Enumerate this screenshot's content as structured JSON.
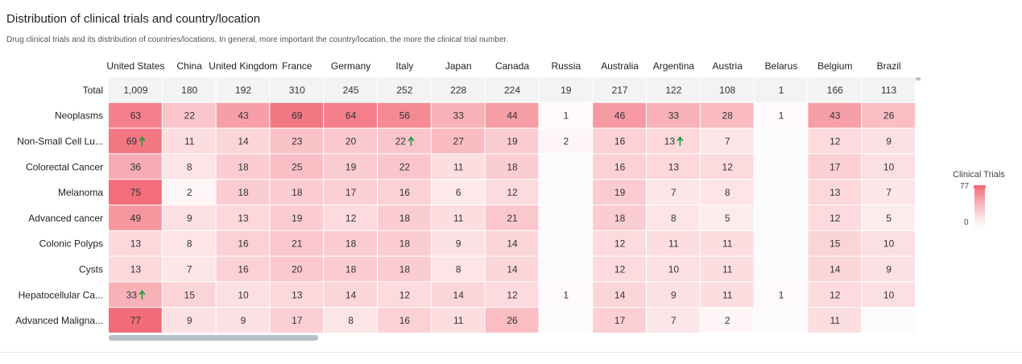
{
  "header": {
    "title": "Distribution of clinical trials and country/location",
    "subtitle": "Drug clinical trials and its distribution of countries/locations. In general, more important the country/location, the more the clinical trial number."
  },
  "legend": {
    "title": "Clinical Trials",
    "max": "77",
    "min": "0"
  },
  "colors": {
    "high": "#f26b78",
    "low": "#ffffff",
    "total_bg": "#f3f3f4",
    "arrow": "#1a9e3a",
    "scrollbar": "#b8bfc7"
  },
  "chart_data": {
    "type": "heatmap",
    "title": "Distribution of clinical trials and country/location",
    "columns": [
      "United States",
      "China",
      "United Kingdom",
      "France",
      "Germany",
      "Italy",
      "Japan",
      "Canada",
      "Russia",
      "Australia",
      "Argentina",
      "Austria",
      "Belarus",
      "Belgium",
      "Brazil"
    ],
    "rows": [
      "Total",
      "Neoplasms",
      "Non-Small Cell Lu...",
      "Colorectal Cancer",
      "Melanoma",
      "Advanced cancer",
      "Colonic Polyps",
      "Cysts",
      "Hepatocellular Ca...",
      "Advanced Maligna..."
    ],
    "total": [
      "1,009",
      "180",
      "192",
      "310",
      "245",
      "252",
      "228",
      "224",
      "19",
      "217",
      "122",
      "108",
      "1",
      "166",
      "113"
    ],
    "values": [
      [
        63,
        22,
        43,
        69,
        64,
        56,
        33,
        44,
        1,
        46,
        33,
        28,
        1,
        43,
        26
      ],
      [
        69,
        11,
        14,
        23,
        20,
        22,
        27,
        19,
        2,
        16,
        13,
        7,
        null,
        12,
        9
      ],
      [
        36,
        8,
        18,
        25,
        19,
        22,
        11,
        18,
        null,
        16,
        13,
        12,
        null,
        17,
        10
      ],
      [
        75,
        2,
        18,
        18,
        17,
        16,
        6,
        12,
        null,
        19,
        7,
        8,
        null,
        13,
        7
      ],
      [
        49,
        9,
        13,
        19,
        12,
        18,
        11,
        21,
        null,
        18,
        8,
        5,
        null,
        12,
        5
      ],
      [
        13,
        8,
        16,
        21,
        18,
        18,
        9,
        14,
        null,
        12,
        11,
        11,
        null,
        15,
        10
      ],
      [
        13,
        7,
        16,
        20,
        18,
        18,
        8,
        14,
        null,
        12,
        10,
        11,
        null,
        14,
        9
      ],
      [
        33,
        15,
        10,
        13,
        14,
        12,
        14,
        12,
        1,
        14,
        9,
        11,
        1,
        12,
        10
      ],
      [
        77,
        9,
        9,
        17,
        8,
        16,
        11,
        26,
        null,
        17,
        7,
        2,
        null,
        11,
        null
      ]
    ],
    "arrows": [
      [
        1,
        0
      ],
      [
        1,
        5
      ],
      [
        1,
        10
      ],
      [
        7,
        0
      ]
    ],
    "color_range": [
      0,
      77
    ]
  }
}
